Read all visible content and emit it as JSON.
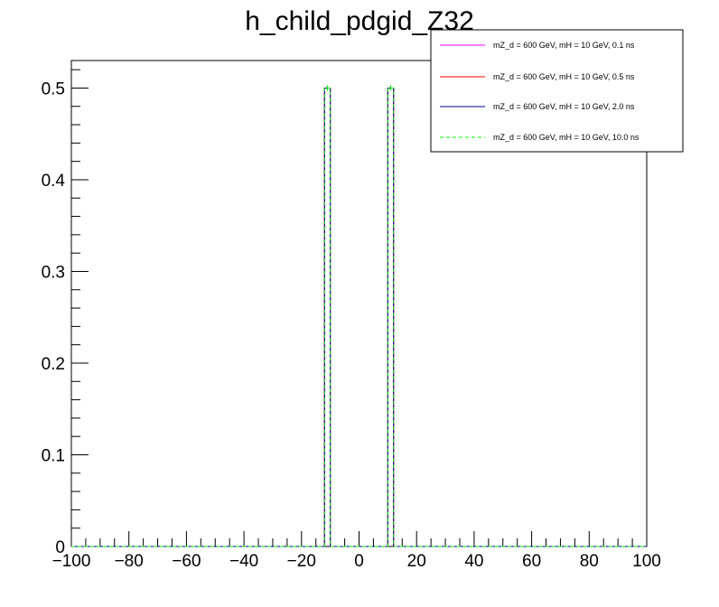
{
  "chart_data": {
    "type": "bar",
    "title": "h_child_pdgid_Z32",
    "xlabel": "",
    "ylabel": "",
    "xlim": [
      -100,
      100
    ],
    "ylim": [
      0,
      0.53
    ],
    "x_ticks": [
      -100,
      -80,
      -60,
      -40,
      -20,
      0,
      20,
      40,
      60,
      80,
      100
    ],
    "x_tick_labels": [
      "−100",
      "−80",
      "−60",
      "−40",
      "−20",
      "0",
      "20",
      "40",
      "60",
      "80",
      "100"
    ],
    "y_ticks": [
      0,
      0.1,
      0.2,
      0.3,
      0.4,
      0.5
    ],
    "y_tick_labels": [
      "0",
      "0.1",
      "0.2",
      "0.3",
      "0.4",
      "0.5"
    ],
    "bins": {
      "low": -100,
      "high": 100,
      "count": 100
    },
    "grid": false,
    "legend_position": "top-right",
    "series": [
      {
        "name": "mZ_d = 600 GeV, mH = 10 GeV, 0.1 ns",
        "color": "#ff00ff",
        "style": "solid",
        "bars": [
          {
            "x_low": -12,
            "x_high": -10,
            "value": 0.5
          },
          {
            "x_low": 10,
            "x_high": 12,
            "value": 0.5
          }
        ]
      },
      {
        "name": "mZ_d = 600 GeV, mH = 10 GeV, 0.5 ns",
        "color": "#ff0000",
        "style": "solid",
        "bars": [
          {
            "x_low": -12,
            "x_high": -10,
            "value": 0.5
          },
          {
            "x_low": 10,
            "x_high": 12,
            "value": 0.5
          }
        ]
      },
      {
        "name": "mZ_d = 600 GeV, mH = 10 GeV, 2.0 ns",
        "color": "#000099",
        "style": "solid",
        "bars": [
          {
            "x_low": -12,
            "x_high": -10,
            "value": 0.5
          },
          {
            "x_low": 10,
            "x_high": 12,
            "value": 0.5
          }
        ]
      },
      {
        "name": "mZ_d = 600 GeV, mH = 10 GeV, 10.0 ns",
        "color": "#00ff00",
        "style": "dashed",
        "bars": [
          {
            "x_low": -12,
            "x_high": -10,
            "value": 0.5
          },
          {
            "x_low": 10,
            "x_high": 12,
            "value": 0.5
          }
        ]
      }
    ]
  }
}
